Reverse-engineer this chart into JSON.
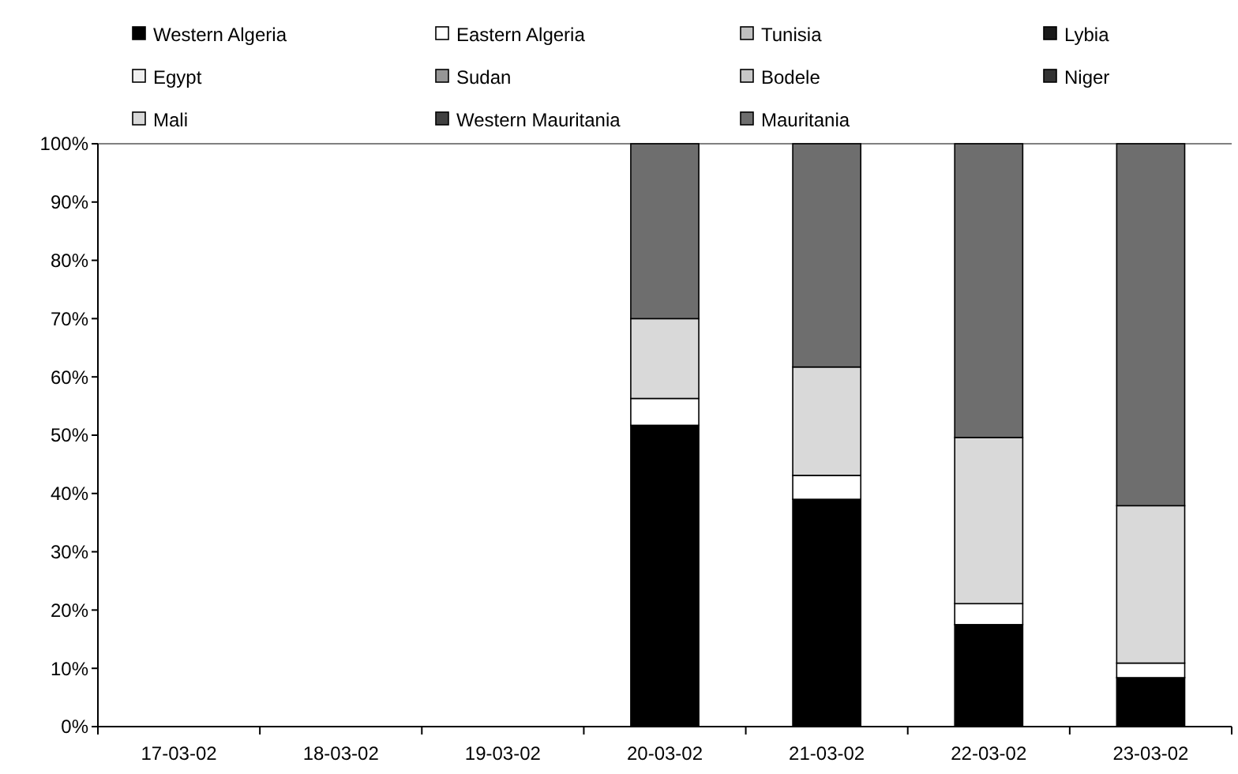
{
  "chart_data": {
    "type": "bar",
    "stacked": true,
    "categories": [
      "17-03-02",
      "18-03-02",
      "19-03-02",
      "20-03-02",
      "21-03-02",
      "22-03-02",
      "23-03-02"
    ],
    "series": [
      {
        "name": "Western Algeria",
        "color": "#000000",
        "values": [
          null,
          null,
          null,
          51.7,
          39.0,
          17.5,
          8.4
        ]
      },
      {
        "name": "Eastern Algeria",
        "color": "#ffffff",
        "values": [
          null,
          null,
          null,
          4.6,
          4.1,
          3.6,
          2.5
        ]
      },
      {
        "name": "Tunisia",
        "color": "#c0c0c0",
        "values": [
          null,
          null,
          null,
          0,
          0,
          0,
          0
        ]
      },
      {
        "name": "Lybia",
        "color": "#1a1a1a",
        "values": [
          null,
          null,
          null,
          0,
          0,
          0,
          0
        ]
      },
      {
        "name": "Egypt",
        "color": "#f0f0f0",
        "values": [
          null,
          null,
          null,
          0,
          0,
          0,
          0
        ]
      },
      {
        "name": "Sudan",
        "color": "#969696",
        "values": [
          null,
          null,
          null,
          0,
          0,
          0,
          0
        ]
      },
      {
        "name": "Bodele",
        "color": "#c8c8c8",
        "values": [
          null,
          null,
          null,
          0,
          0,
          0,
          0
        ]
      },
      {
        "name": "Niger",
        "color": "#333333",
        "values": [
          null,
          null,
          null,
          0,
          0,
          0,
          0
        ]
      },
      {
        "name": "Mali",
        "color": "#d9d9d9",
        "values": [
          null,
          null,
          null,
          13.7,
          18.6,
          28.5,
          27.0
        ]
      },
      {
        "name": "Western Mauritania",
        "color": "#404040",
        "values": [
          null,
          null,
          null,
          0,
          0,
          0,
          0
        ]
      },
      {
        "name": "Mauritania",
        "color": "#6e6e6e",
        "values": [
          null,
          null,
          null,
          30.0,
          38.3,
          50.4,
          62.1
        ]
      }
    ],
    "ylim": [
      0,
      100
    ],
    "yticks": [
      {
        "value": 0,
        "label": "0%"
      },
      {
        "value": 10,
        "label": "10%"
      },
      {
        "value": 20,
        "label": "20%"
      },
      {
        "value": 30,
        "label": "30%"
      },
      {
        "value": 40,
        "label": "40%"
      },
      {
        "value": 50,
        "label": "50%"
      },
      {
        "value": 60,
        "label": "60%"
      },
      {
        "value": 70,
        "label": "70%"
      },
      {
        "value": 80,
        "label": "80%"
      },
      {
        "value": 90,
        "label": "90%"
      },
      {
        "value": 100,
        "label": "100%"
      }
    ],
    "grid": false,
    "legend": "top"
  }
}
